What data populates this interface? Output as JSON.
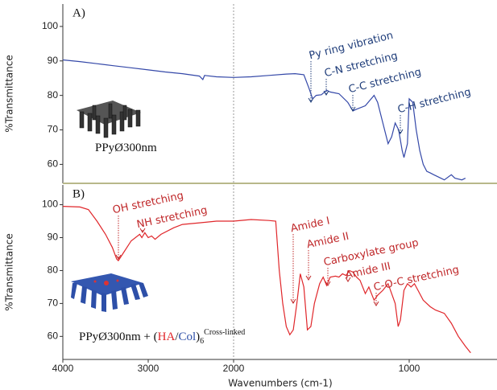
{
  "chart_data": [
    {
      "type": "line",
      "panel_label": "A)",
      "y_label": "%Transmittance",
      "color": "#3448a8",
      "x": [
        4000,
        3800,
        3600,
        3400,
        3200,
        3000,
        2800,
        2600,
        2400,
        2360,
        2340,
        2200,
        2000,
        1900,
        1800,
        1700,
        1650,
        1600,
        1570,
        1550,
        1530,
        1500,
        1470,
        1450,
        1400,
        1350,
        1320,
        1300,
        1250,
        1200,
        1180,
        1150,
        1120,
        1100,
        1080,
        1060,
        1040,
        1030,
        1010,
        1000,
        980,
        960,
        940,
        920,
        900,
        880,
        860,
        840,
        800,
        760,
        740,
        700,
        680
      ],
      "values": [
        90.3,
        89.8,
        89.2,
        88.6,
        88.0,
        87.4,
        86.8,
        86.3,
        85.6,
        84.6,
        85.8,
        85.4,
        85.2,
        85.4,
        85.8,
        86.2,
        86.3,
        86.0,
        82.0,
        79.0,
        80.0,
        80.2,
        81.5,
        81.0,
        80.5,
        78.0,
        75.5,
        76.0,
        77.0,
        80.0,
        78.0,
        72.0,
        66.0,
        68.0,
        72.0,
        70.0,
        64.0,
        62.0,
        66.0,
        79.0,
        78.0,
        70.0,
        64.0,
        60.0,
        58.0,
        57.5,
        57.0,
        56.5,
        55.5,
        57.0,
        56.0,
        55.5,
        56.0
      ],
      "xlim": [
        4000,
        500
      ],
      "x_break": 2000,
      "ylim": [
        54.5,
        106.5
      ],
      "yticks": [
        60,
        70,
        80,
        90,
        100
      ],
      "annotations": [
        "Py ring vibration",
        "C-N stretching",
        "C-C stretching",
        "C-H stretching"
      ],
      "caption": [
        "PPyØ300nm"
      ]
    },
    {
      "type": "line",
      "panel_label": "B)",
      "y_label": "%Transmittance",
      "x_label": "Wavenumbers (cm-1)",
      "color": "#e0262a",
      "x": [
        4000,
        3800,
        3700,
        3600,
        3500,
        3420,
        3370,
        3350,
        3300,
        3200,
        3100,
        3075,
        3040,
        3000,
        2960,
        2920,
        2850,
        2700,
        2600,
        2400,
        2200,
        2000,
        1900,
        1800,
        1760,
        1740,
        1720,
        1700,
        1680,
        1660,
        1640,
        1620,
        1600,
        1580,
        1560,
        1540,
        1510,
        1490,
        1470,
        1450,
        1420,
        1400,
        1380,
        1360,
        1340,
        1320,
        1300,
        1280,
        1250,
        1230,
        1200,
        1180,
        1150,
        1120,
        1100,
        1080,
        1063,
        1050,
        1030,
        1010,
        990,
        970,
        950,
        920,
        880,
        850,
        800,
        760,
        720,
        680,
        650
      ],
      "values": [
        99.5,
        99.3,
        98.5,
        95.0,
        91.0,
        87.0,
        83.5,
        83.0,
        85.0,
        89.0,
        91.0,
        90.0,
        91.5,
        90.0,
        90.5,
        89.5,
        91.0,
        93.0,
        94.0,
        94.5,
        95.0,
        95.0,
        95.5,
        95.2,
        95.0,
        80.0,
        70.0,
        63.0,
        60.5,
        62.0,
        70.0,
        79.0,
        75.0,
        62.0,
        63.0,
        70.0,
        76.0,
        78.0,
        75.5,
        78.0,
        78.3,
        78.0,
        79.0,
        78.5,
        80.0,
        79.5,
        78.0,
        77.0,
        73.0,
        75.0,
        71.0,
        72.5,
        74.0,
        76.0,
        73.0,
        70.0,
        63.0,
        65.0,
        74.0,
        76.0,
        75.0,
        76.0,
        74.0,
        71.0,
        69.0,
        68.0,
        67.0,
        64.0,
        60.0,
        57.0,
        55.0
      ],
      "xlim": [
        4000,
        500
      ],
      "x_break": 2000,
      "xticks": [
        4000,
        3000,
        2000,
        1000
      ],
      "ylim": [
        53,
        106
      ],
      "yticks": [
        60,
        70,
        80,
        90,
        100
      ],
      "annotations": [
        "OH stretching",
        "NH stretching",
        "Amide I",
        "Amide II",
        "Carboxylate group",
        "Amide III",
        "C-O-C stretching"
      ],
      "caption": [
        "PPyØ300nm + (",
        "HA",
        "/",
        "Col",
        ")",
        "6",
        "Cross-linked"
      ]
    }
  ]
}
